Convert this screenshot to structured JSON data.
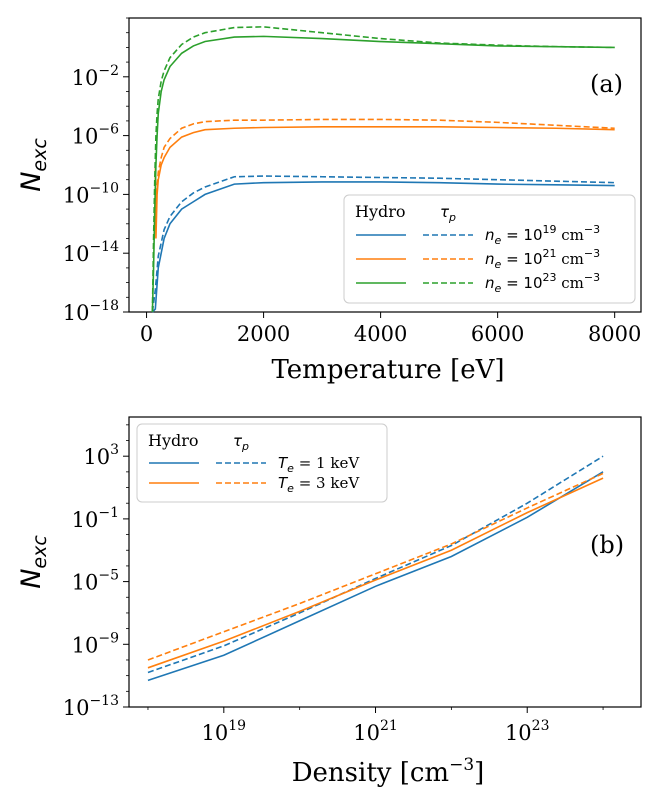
{
  "chart_data": [
    {
      "id": "a",
      "type": "line",
      "panel_label": "(a)",
      "xlabel": "Temperature [eV]",
      "ylabel_main": "N",
      "ylabel_sub": "exc",
      "xlim": [
        -300,
        8450
      ],
      "ylim_exp": [
        -18,
        2
      ],
      "yscale": "log",
      "x_ticks": [
        0,
        2000,
        4000,
        6000,
        8000
      ],
      "x_tick_labels": [
        "0",
        "2000",
        "4000",
        "6000",
        "8000"
      ],
      "y_tick_exps": [
        -18,
        -14,
        -10,
        -6,
        -2
      ],
      "y_tick_labels": [
        "10",
        "10",
        "10",
        "10",
        "10"
      ],
      "y_tick_sups": [
        "−18",
        "−14",
        "−10",
        "−6",
        "−2"
      ],
      "legend": {
        "position": "lower right",
        "header_left": "Hydro",
        "header_right": "τ",
        "header_right_sub": "p",
        "entries": [
          {
            "pre": "n",
            "sub": "e",
            "eq": " = 10",
            "sup": "19",
            "unit": " cm",
            "unit_sup": "−3"
          },
          {
            "pre": "n",
            "sub": "e",
            "eq": " = 10",
            "sup": "21",
            "unit": " cm",
            "unit_sup": "−3"
          },
          {
            "pre": "n",
            "sub": "e",
            "eq": " = 10",
            "sup": "23",
            "unit": " cm",
            "unit_sup": "−3"
          }
        ]
      },
      "series": [
        {
          "name": "Hydro n_e=1e19",
          "color": "#1f77b4",
          "dashed": false,
          "x": [
            100,
            150,
            200,
            300,
            400,
            600,
            800,
            1000,
            1500,
            2000,
            3000,
            4000,
            5000,
            6000,
            7000,
            8000
          ],
          "log10y": [
            -21,
            -17.8,
            -15.0,
            -13.0,
            -12.0,
            -11.0,
            -10.5,
            -10.0,
            -9.3,
            -9.2,
            -9.15,
            -9.15,
            -9.2,
            -9.3,
            -9.35,
            -9.4
          ]
        },
        {
          "name": "tau_p n_e=1e19",
          "color": "#1f77b4",
          "dashed": true,
          "x": [
            100,
            150,
            200,
            300,
            400,
            600,
            800,
            1000,
            1500,
            2000,
            3000,
            4000,
            5000,
            6000,
            7000,
            8000
          ],
          "log10y": [
            -21,
            -16.5,
            -14.2,
            -12.4,
            -11.5,
            -10.5,
            -9.9,
            -9.5,
            -8.8,
            -8.75,
            -8.8,
            -8.85,
            -8.9,
            -9.0,
            -9.1,
            -9.2
          ]
        },
        {
          "name": "Hydro n_e=1e21",
          "color": "#ff7f0e",
          "dashed": false,
          "x": [
            150,
            160,
            170,
            180,
            200,
            250,
            300,
            400,
            600,
            800,
            1000,
            1500,
            2000,
            3000,
            4000,
            5000,
            6000,
            7000,
            8000
          ],
          "log10y": [
            -8.0,
            -13.0,
            -11.5,
            -10.0,
            -9.0,
            -8.0,
            -7.5,
            -6.8,
            -6.1,
            -5.8,
            -5.6,
            -5.5,
            -5.45,
            -5.4,
            -5.4,
            -5.4,
            -5.45,
            -5.5,
            -5.6
          ]
        },
        {
          "name": "tau_p n_e=1e21",
          "color": "#ff7f0e",
          "dashed": true,
          "x": [
            150,
            160,
            170,
            180,
            200,
            250,
            300,
            400,
            600,
            800,
            1000,
            1500,
            2000,
            3000,
            4000,
            5000,
            6000,
            7000,
            8000
          ],
          "log10y": [
            -8.5,
            -12.0,
            -10.5,
            -9.5,
            -8.5,
            -7.5,
            -6.8,
            -6.2,
            -5.5,
            -5.2,
            -5.05,
            -4.95,
            -4.95,
            -4.9,
            -4.9,
            -4.95,
            -5.1,
            -5.3,
            -5.5
          ]
        },
        {
          "name": "Hydro n_e=1e23",
          "color": "#2ca02c",
          "dashed": false,
          "x": [
            100,
            120,
            140,
            160,
            180,
            200,
            250,
            300,
            400,
            600,
            800,
            1000,
            1500,
            2000,
            3000,
            4000,
            5000,
            6000,
            7000,
            8000
          ],
          "log10y": [
            -21,
            -15,
            -11,
            -8,
            -6,
            -4.5,
            -3.0,
            -2.2,
            -1.3,
            -0.4,
            0.1,
            0.4,
            0.7,
            0.75,
            0.6,
            0.4,
            0.25,
            0.1,
            0.05,
            0.0
          ]
        },
        {
          "name": "tau_p n_e=1e23",
          "color": "#2ca02c",
          "dashed": true,
          "x": [
            100,
            120,
            140,
            160,
            180,
            200,
            250,
            300,
            400,
            600,
            800,
            1000,
            1500,
            2000,
            3000,
            4000,
            5000,
            6000,
            7000,
            8000
          ],
          "log10y": [
            -21,
            -13,
            -9,
            -6,
            -4.5,
            -3.5,
            -2.3,
            -1.6,
            -0.7,
            0.2,
            0.7,
            1.0,
            1.35,
            1.4,
            1.0,
            0.6,
            0.3,
            0.15,
            0.05,
            0.0
          ]
        }
      ]
    },
    {
      "id": "b",
      "type": "line",
      "panel_label": "(b)",
      "xlabel": "Density [cm",
      "xlabel_sup": "−3",
      "xlabel_end": "]",
      "ylabel_main": "N",
      "ylabel_sub": "exc",
      "xscale": "log",
      "yscale": "log",
      "xlim_exp": [
        17.75,
        24.5
      ],
      "ylim_exp": [
        -13,
        5.5
      ],
      "x_tick_exps": [
        19,
        21,
        23
      ],
      "x_tick_labels": [
        "10",
        "10",
        "10"
      ],
      "x_tick_sups": [
        "19",
        "21",
        "23"
      ],
      "y_tick_exps": [
        -13,
        -9,
        -5,
        -1,
        3
      ],
      "y_tick_labels": [
        "10",
        "10",
        "10",
        "10",
        "10"
      ],
      "y_tick_sups": [
        "−13",
        "−9",
        "−5",
        "−1",
        "3"
      ],
      "legend": {
        "position": "upper left",
        "header_left": "Hydro",
        "header_right": "τ",
        "header_right_sub": "p",
        "entries": [
          {
            "pre": "T",
            "sub": "e",
            "eq": " = 1 keV"
          },
          {
            "pre": "T",
            "sub": "e",
            "eq": " = 3 keV"
          }
        ]
      },
      "series": [
        {
          "name": "Hydro Te=1keV",
          "color": "#1f77b4",
          "dashed": false,
          "log10x": [
            18.0,
            19.0,
            20.0,
            21.0,
            22.0,
            23.0,
            24.0
          ],
          "log10y": [
            -11.3,
            -9.7,
            -7.5,
            -5.3,
            -3.4,
            -0.9,
            2.0
          ]
        },
        {
          "name": "tau_p Te=1keV",
          "color": "#1f77b4",
          "dashed": true,
          "log10x": [
            18.0,
            19.0,
            20.0,
            21.0,
            22.0,
            23.0,
            24.0
          ],
          "log10y": [
            -10.8,
            -9.1,
            -7.0,
            -4.8,
            -2.7,
            0.0,
            3.0
          ]
        },
        {
          "name": "Hydro Te=3keV",
          "color": "#ff7f0e",
          "dashed": false,
          "log10x": [
            18.0,
            19.0,
            20.0,
            21.0,
            22.0,
            23.0,
            24.0
          ],
          "log10y": [
            -10.5,
            -8.8,
            -6.9,
            -4.9,
            -3.0,
            -0.6,
            1.6
          ]
        },
        {
          "name": "tau_p Te=3keV",
          "color": "#ff7f0e",
          "dashed": true,
          "log10x": [
            18.0,
            19.0,
            20.0,
            21.0,
            22.0,
            23.0,
            24.0
          ],
          "log10y": [
            -10.0,
            -8.2,
            -6.4,
            -4.5,
            -2.6,
            -0.3,
            1.9
          ]
        }
      ]
    }
  ]
}
